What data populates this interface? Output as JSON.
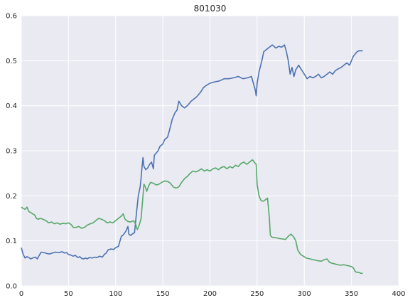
{
  "chart_data": {
    "type": "line",
    "title": "801030",
    "xlabel": "",
    "ylabel": "",
    "xlim": [
      0,
      400
    ],
    "ylim": [
      0.0,
      0.6
    ],
    "x_ticks": [
      0,
      50,
      100,
      150,
      200,
      250,
      300,
      350,
      400
    ],
    "x_tick_labels": [
      "0",
      "50",
      "100",
      "150",
      "200",
      "250",
      "300",
      "350",
      "400"
    ],
    "y_ticks": [
      0.0,
      0.1,
      0.2,
      0.3,
      0.4,
      0.5,
      0.6
    ],
    "y_tick_labels": [
      "0.0",
      "0.1",
      "0.2",
      "0.3",
      "0.4",
      "0.5",
      "0.6"
    ],
    "grid": true,
    "background": "#EAEAF2",
    "series": [
      {
        "color": "#4C72B0",
        "points": [
          [
            0,
            0.085
          ],
          [
            2,
            0.07
          ],
          [
            4,
            0.062
          ],
          [
            6,
            0.065
          ],
          [
            8,
            0.063
          ],
          [
            10,
            0.06
          ],
          [
            12,
            0.062
          ],
          [
            15,
            0.064
          ],
          [
            17,
            0.06
          ],
          [
            19,
            0.068
          ],
          [
            21,
            0.075
          ],
          [
            24,
            0.074
          ],
          [
            27,
            0.072
          ],
          [
            30,
            0.071
          ],
          [
            33,
            0.073
          ],
          [
            36,
            0.075
          ],
          [
            40,
            0.074
          ],
          [
            43,
            0.076
          ],
          [
            46,
            0.073
          ],
          [
            48,
            0.074
          ],
          [
            50,
            0.07
          ],
          [
            53,
            0.068
          ],
          [
            55,
            0.066
          ],
          [
            57,
            0.068
          ],
          [
            60,
            0.063
          ],
          [
            62,
            0.065
          ],
          [
            64,
            0.061
          ],
          [
            66,
            0.06
          ],
          [
            68,
            0.062
          ],
          [
            70,
            0.06
          ],
          [
            72,
            0.063
          ],
          [
            75,
            0.062
          ],
          [
            78,
            0.064
          ],
          [
            80,
            0.063
          ],
          [
            83,
            0.066
          ],
          [
            86,
            0.064
          ],
          [
            88,
            0.07
          ],
          [
            90,
            0.073
          ],
          [
            92,
            0.08
          ],
          [
            95,
            0.082
          ],
          [
            98,
            0.081
          ],
          [
            100,
            0.085
          ],
          [
            103,
            0.088
          ],
          [
            106,
            0.11
          ],
          [
            108,
            0.113
          ],
          [
            111,
            0.122
          ],
          [
            113,
            0.132
          ],
          [
            114,
            0.115
          ],
          [
            116,
            0.112
          ],
          [
            118,
            0.116
          ],
          [
            120,
            0.118
          ],
          [
            122,
            0.16
          ],
          [
            124,
            0.2
          ],
          [
            126,
            0.22
          ],
          [
            127,
            0.24
          ],
          [
            128,
            0.265
          ],
          [
            129,
            0.285
          ],
          [
            130,
            0.265
          ],
          [
            132,
            0.258
          ],
          [
            134,
            0.262
          ],
          [
            136,
            0.27
          ],
          [
            138,
            0.275
          ],
          [
            140,
            0.26
          ],
          [
            141,
            0.29
          ],
          [
            143,
            0.295
          ],
          [
            145,
            0.3
          ],
          [
            147,
            0.31
          ],
          [
            150,
            0.315
          ],
          [
            152,
            0.325
          ],
          [
            155,
            0.33
          ],
          [
            157,
            0.345
          ],
          [
            160,
            0.37
          ],
          [
            163,
            0.385
          ],
          [
            165,
            0.39
          ],
          [
            167,
            0.41
          ],
          [
            170,
            0.4
          ],
          [
            173,
            0.395
          ],
          [
            176,
            0.4
          ],
          [
            180,
            0.41
          ],
          [
            183,
            0.415
          ],
          [
            186,
            0.42
          ],
          [
            190,
            0.43
          ],
          [
            193,
            0.44
          ],
          [
            196,
            0.445
          ],
          [
            200,
            0.45
          ],
          [
            205,
            0.453
          ],
          [
            210,
            0.455
          ],
          [
            215,
            0.46
          ],
          [
            220,
            0.46
          ],
          [
            225,
            0.462
          ],
          [
            230,
            0.465
          ],
          [
            235,
            0.46
          ],
          [
            240,
            0.462
          ],
          [
            244,
            0.465
          ],
          [
            246,
            0.45
          ],
          [
            248,
            0.435
          ],
          [
            249,
            0.422
          ],
          [
            250,
            0.45
          ],
          [
            252,
            0.475
          ],
          [
            255,
            0.5
          ],
          [
            257,
            0.52
          ],
          [
            260,
            0.525
          ],
          [
            263,
            0.53
          ],
          [
            266,
            0.535
          ],
          [
            270,
            0.528
          ],
          [
            273,
            0.532
          ],
          [
            276,
            0.53
          ],
          [
            279,
            0.535
          ],
          [
            281,
            0.52
          ],
          [
            283,
            0.5
          ],
          [
            285,
            0.47
          ],
          [
            287,
            0.485
          ],
          [
            289,
            0.465
          ],
          [
            291,
            0.48
          ],
          [
            294,
            0.49
          ],
          [
            297,
            0.48
          ],
          [
            300,
            0.47
          ],
          [
            303,
            0.46
          ],
          [
            306,
            0.465
          ],
          [
            309,
            0.462
          ],
          [
            312,
            0.465
          ],
          [
            315,
            0.47
          ],
          [
            318,
            0.462
          ],
          [
            321,
            0.465
          ],
          [
            324,
            0.47
          ],
          [
            327,
            0.475
          ],
          [
            330,
            0.47
          ],
          [
            333,
            0.478
          ],
          [
            336,
            0.482
          ],
          [
            339,
            0.485
          ],
          [
            342,
            0.49
          ],
          [
            345,
            0.495
          ],
          [
            348,
            0.49
          ],
          [
            350,
            0.5
          ],
          [
            352,
            0.51
          ],
          [
            354,
            0.515
          ],
          [
            356,
            0.52
          ],
          [
            358,
            0.522
          ],
          [
            362,
            0.522
          ]
        ]
      },
      {
        "color": "#55A868",
        "points": [
          [
            0,
            0.175
          ],
          [
            2,
            0.172
          ],
          [
            4,
            0.17
          ],
          [
            6,
            0.175
          ],
          [
            8,
            0.165
          ],
          [
            10,
            0.163
          ],
          [
            12,
            0.16
          ],
          [
            14,
            0.158
          ],
          [
            16,
            0.15
          ],
          [
            18,
            0.148
          ],
          [
            20,
            0.15
          ],
          [
            23,
            0.148
          ],
          [
            26,
            0.145
          ],
          [
            29,
            0.14
          ],
          [
            32,
            0.142
          ],
          [
            35,
            0.138
          ],
          [
            38,
            0.14
          ],
          [
            41,
            0.137
          ],
          [
            44,
            0.139
          ],
          [
            47,
            0.138
          ],
          [
            50,
            0.14
          ],
          [
            53,
            0.136
          ],
          [
            55,
            0.13
          ],
          [
            58,
            0.13
          ],
          [
            61,
            0.132
          ],
          [
            64,
            0.128
          ],
          [
            67,
            0.13
          ],
          [
            70,
            0.135
          ],
          [
            73,
            0.138
          ],
          [
            76,
            0.14
          ],
          [
            79,
            0.145
          ],
          [
            82,
            0.15
          ],
          [
            85,
            0.148
          ],
          [
            88,
            0.145
          ],
          [
            91,
            0.14
          ],
          [
            94,
            0.142
          ],
          [
            97,
            0.14
          ],
          [
            100,
            0.145
          ],
          [
            103,
            0.15
          ],
          [
            106,
            0.155
          ],
          [
            108,
            0.16
          ],
          [
            110,
            0.148
          ],
          [
            113,
            0.143
          ],
          [
            116,
            0.142
          ],
          [
            119,
            0.145
          ],
          [
            121,
            0.138
          ],
          [
            123,
            0.125
          ],
          [
            125,
            0.135
          ],
          [
            127,
            0.15
          ],
          [
            129,
            0.2
          ],
          [
            130,
            0.226
          ],
          [
            131,
            0.222
          ],
          [
            133,
            0.21
          ],
          [
            135,
            0.222
          ],
          [
            137,
            0.23
          ],
          [
            140,
            0.228
          ],
          [
            143,
            0.224
          ],
          [
            146,
            0.226
          ],
          [
            149,
            0.23
          ],
          [
            152,
            0.233
          ],
          [
            155,
            0.232
          ],
          [
            158,
            0.228
          ],
          [
            161,
            0.22
          ],
          [
            164,
            0.217
          ],
          [
            167,
            0.22
          ],
          [
            170,
            0.23
          ],
          [
            173,
            0.238
          ],
          [
            176,
            0.243
          ],
          [
            179,
            0.25
          ],
          [
            182,
            0.255
          ],
          [
            185,
            0.253
          ],
          [
            188,
            0.256
          ],
          [
            191,
            0.26
          ],
          [
            194,
            0.255
          ],
          [
            197,
            0.258
          ],
          [
            200,
            0.255
          ],
          [
            203,
            0.26
          ],
          [
            206,
            0.262
          ],
          [
            209,
            0.258
          ],
          [
            212,
            0.263
          ],
          [
            215,
            0.265
          ],
          [
            218,
            0.26
          ],
          [
            221,
            0.265
          ],
          [
            224,
            0.262
          ],
          [
            227,
            0.268
          ],
          [
            230,
            0.265
          ],
          [
            233,
            0.272
          ],
          [
            236,
            0.275
          ],
          [
            239,
            0.27
          ],
          [
            242,
            0.275
          ],
          [
            245,
            0.28
          ],
          [
            248,
            0.272
          ],
          [
            249,
            0.27
          ],
          [
            250,
            0.225
          ],
          [
            252,
            0.2
          ],
          [
            254,
            0.19
          ],
          [
            256,
            0.188
          ],
          [
            258,
            0.19
          ],
          [
            261,
            0.195
          ],
          [
            263,
            0.15
          ],
          [
            264,
            0.112
          ],
          [
            266,
            0.108
          ],
          [
            270,
            0.107
          ],
          [
            274,
            0.105
          ],
          [
            278,
            0.104
          ],
          [
            280,
            0.103
          ],
          [
            282,
            0.108
          ],
          [
            284,
            0.112
          ],
          [
            286,
            0.115
          ],
          [
            289,
            0.108
          ],
          [
            291,
            0.1
          ],
          [
            293,
            0.08
          ],
          [
            296,
            0.07
          ],
          [
            299,
            0.066
          ],
          [
            302,
            0.062
          ],
          [
            306,
            0.06
          ],
          [
            310,
            0.058
          ],
          [
            314,
            0.056
          ],
          [
            318,
            0.055
          ],
          [
            321,
            0.058
          ],
          [
            324,
            0.06
          ],
          [
            327,
            0.052
          ],
          [
            330,
            0.05
          ],
          [
            334,
            0.048
          ],
          [
            338,
            0.046
          ],
          [
            342,
            0.047
          ],
          [
            346,
            0.045
          ],
          [
            350,
            0.043
          ],
          [
            352,
            0.04
          ],
          [
            354,
            0.032
          ],
          [
            356,
            0.03
          ],
          [
            358,
            0.03
          ],
          [
            360,
            0.028
          ],
          [
            362,
            0.028
          ]
        ]
      }
    ]
  }
}
